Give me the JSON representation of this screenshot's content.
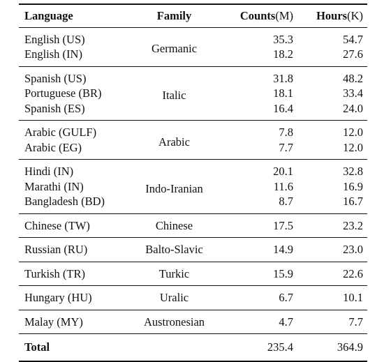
{
  "header": {
    "language": "Language",
    "family": "Family",
    "counts": "Counts",
    "counts_unit": "(M)",
    "hours": "Hours",
    "hours_unit": "(K)"
  },
  "groups": [
    {
      "family": "Germanic",
      "rows": [
        {
          "language": "English (US)",
          "counts": "35.3",
          "hours": "54.7"
        },
        {
          "language": "English (IN)",
          "counts": "18.2",
          "hours": "27.6"
        }
      ]
    },
    {
      "family": "Italic",
      "rows": [
        {
          "language": "Spanish (US)",
          "counts": "31.8",
          "hours": "48.2"
        },
        {
          "language": "Portuguese (BR)",
          "counts": "18.1",
          "hours": "33.4"
        },
        {
          "language": "Spanish (ES)",
          "counts": "16.4",
          "hours": "24.0"
        }
      ]
    },
    {
      "family": "Arabic",
      "rows": [
        {
          "language": "Arabic (GULF)",
          "counts": "7.8",
          "hours": "12.0"
        },
        {
          "language": "Arabic (EG)",
          "counts": "7.7",
          "hours": "12.0"
        }
      ]
    },
    {
      "family": "Indo-Iranian",
      "rows": [
        {
          "language": "Hindi (IN)",
          "counts": "20.1",
          "hours": "32.8"
        },
        {
          "language": "Marathi (IN)",
          "counts": "11.6",
          "hours": "16.9"
        },
        {
          "language": "Bangladesh (BD)",
          "counts": "8.7",
          "hours": "16.7"
        }
      ]
    },
    {
      "family": "Chinese",
      "rows": [
        {
          "language": "Chinese (TW)",
          "counts": "17.5",
          "hours": "23.2"
        }
      ]
    },
    {
      "family": "Balto-Slavic",
      "rows": [
        {
          "language": "Russian (RU)",
          "counts": "14.9",
          "hours": "23.0"
        }
      ]
    },
    {
      "family": "Turkic",
      "rows": [
        {
          "language": "Turkish (TR)",
          "counts": "15.9",
          "hours": "22.6"
        }
      ]
    },
    {
      "family": "Uralic",
      "rows": [
        {
          "language": "Hungary (HU)",
          "counts": "6.7",
          "hours": "10.1"
        }
      ]
    },
    {
      "family": "Austronesian",
      "rows": [
        {
          "language": "Malay (MY)",
          "counts": "4.7",
          "hours": "7.7"
        }
      ]
    }
  ],
  "total": {
    "label": "Total",
    "counts": "235.4",
    "hours": "364.9"
  }
}
